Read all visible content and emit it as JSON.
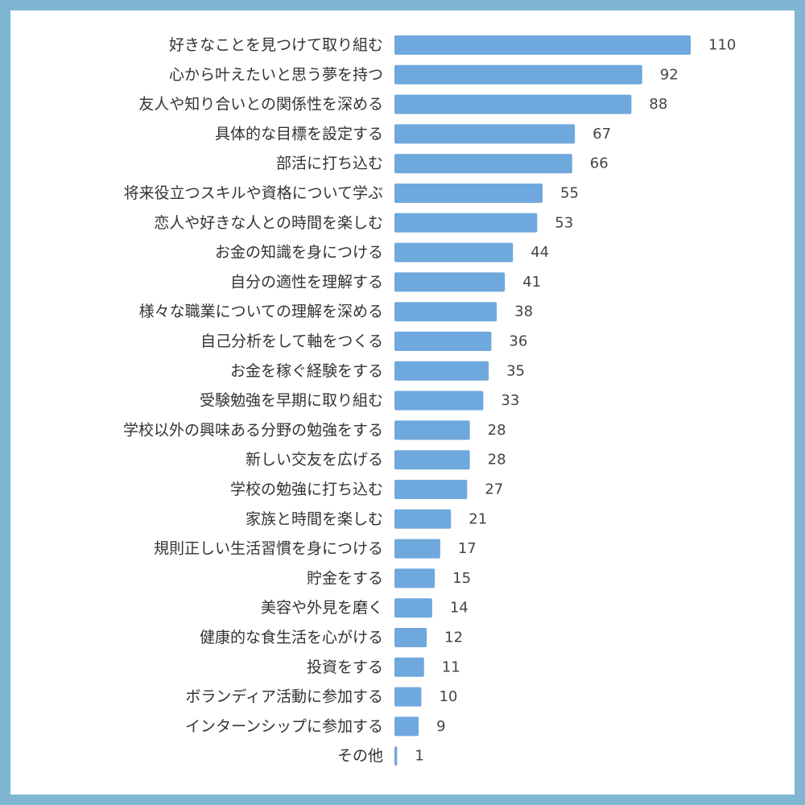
{
  "chart_data": {
    "type": "bar",
    "orientation": "horizontal",
    "categories": [
      "好きなことを見つけて取り組む",
      "心から叶えたいと思う夢を持つ",
      "友人や知り合いとの関係性を深める",
      "具体的な目標を設定する",
      "部活に打ち込む",
      "将来役立つスキルや資格について学ぶ",
      "恋人や好きな人との時間を楽しむ",
      "お金の知識を身につける",
      "自分の適性を理解する",
      "様々な職業についての理解を深める",
      "自己分析をして軸をつくる",
      "お金を稼ぐ経験をする",
      "受験勉強を早期に取り組む",
      "学校以外の興味ある分野の勉強をする",
      "新しい交友を広げる",
      "学校の勉強に打ち込む",
      "家族と時間を楽しむ",
      "規則正しい生活習慣を身につける",
      "貯金をする",
      "美容や外見を磨く",
      "健康的な食生活を心がける",
      "投資をする",
      "ボランディア活動に参加する",
      "インターンシップに参加する",
      "その他"
    ],
    "values": [
      110,
      92,
      88,
      67,
      66,
      55,
      53,
      44,
      41,
      38,
      36,
      35,
      33,
      28,
      28,
      27,
      21,
      17,
      15,
      14,
      12,
      11,
      10,
      9,
      1
    ],
    "title": "",
    "xlabel": "",
    "ylabel": "",
    "xlim": [
      0,
      110
    ],
    "grid": false,
    "legend": "none",
    "data_labels": true,
    "colors": {
      "bar": "#6fa8dc",
      "frame": "#7fb6d4",
      "background": "#ffffff",
      "text": "#333333"
    }
  }
}
